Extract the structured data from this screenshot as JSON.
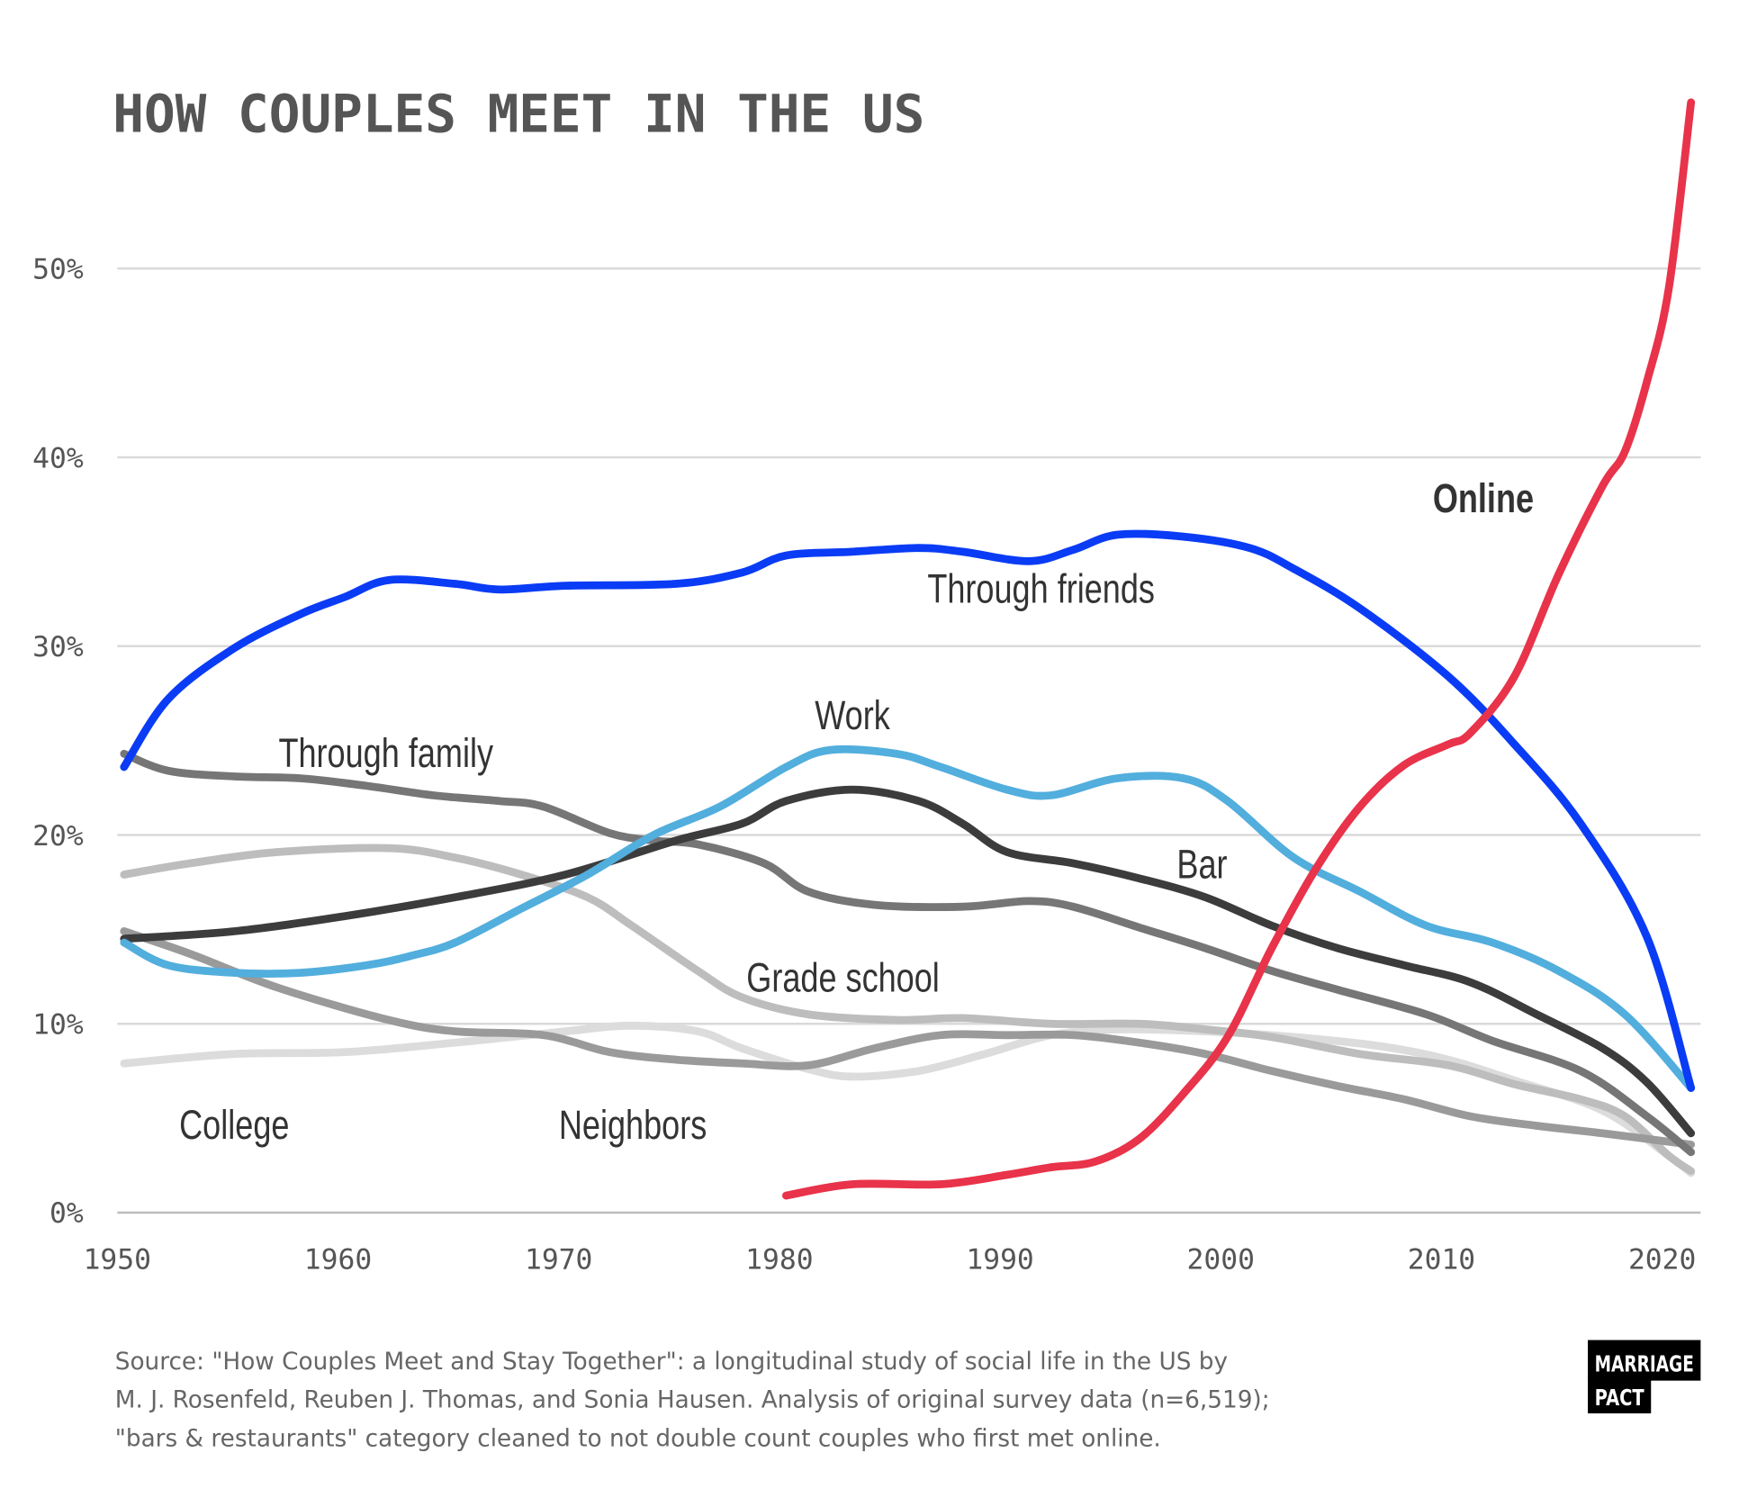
{
  "chart_data": {
    "type": "line",
    "title": "HOW COUPLES MEET IN THE US",
    "xlabel": "",
    "ylabel": "",
    "xlim": [
      1950,
      2021
    ],
    "ylim": [
      0,
      59
    ],
    "grid": true,
    "legend": "inline labels",
    "x_ticks": [
      "1950",
      "1960",
      "1970",
      "1980",
      "1990",
      "2000",
      "2010",
      "2020"
    ],
    "y_ticks": [
      "0%",
      "10%",
      "20%",
      "30%",
      "40%",
      "50%"
    ],
    "series": [
      {
        "name": "College",
        "color": "#dcdcdc",
        "label_pos": [
          1952.5,
          3.9
        ],
        "points": [
          [
            1950,
            7.9
          ],
          [
            1955,
            8.4
          ],
          [
            1960,
            8.5
          ],
          [
            1965,
            9.0
          ],
          [
            1970,
            9.6
          ],
          [
            1973,
            9.9
          ],
          [
            1976,
            9.6
          ],
          [
            1978,
            8.7
          ],
          [
            1981,
            7.6
          ],
          [
            1983,
            7.2
          ],
          [
            1986,
            7.5
          ],
          [
            1989,
            8.4
          ],
          [
            1992,
            9.4
          ],
          [
            1995,
            9.7
          ],
          [
            1999,
            9.6
          ],
          [
            2003,
            9.3
          ],
          [
            2007,
            8.8
          ],
          [
            2010,
            8.1
          ],
          [
            2013,
            7.0
          ],
          [
            2017,
            5.4
          ],
          [
            2020,
            3.0
          ],
          [
            2021,
            2.1
          ]
        ]
      },
      {
        "name": "Grade school",
        "color": "#bdbdbd",
        "label_pos": [
          1978.2,
          11.7
        ],
        "points": [
          [
            1950,
            17.9
          ],
          [
            1953,
            18.5
          ],
          [
            1957,
            19.1
          ],
          [
            1962,
            19.3
          ],
          [
            1965,
            18.8
          ],
          [
            1968,
            17.9
          ],
          [
            1971,
            16.7
          ],
          [
            1973,
            15.2
          ],
          [
            1976,
            12.8
          ],
          [
            1978,
            11.4
          ],
          [
            1981,
            10.5
          ],
          [
            1985,
            10.2
          ],
          [
            1988,
            10.3
          ],
          [
            1992,
            10.0
          ],
          [
            1996,
            10.0
          ],
          [
            1999,
            9.7
          ],
          [
            2002,
            9.3
          ],
          [
            2006,
            8.4
          ],
          [
            2010,
            7.8
          ],
          [
            2013,
            6.8
          ],
          [
            2016,
            6.0
          ],
          [
            2018,
            5.1
          ],
          [
            2020,
            3.0
          ],
          [
            2021,
            2.2
          ]
        ]
      },
      {
        "name": "Neighbors",
        "color": "#9a9a9a",
        "label_pos": [
          1969.7,
          3.9
        ],
        "points": [
          [
            1950,
            14.9
          ],
          [
            1953,
            13.7
          ],
          [
            1957,
            11.9
          ],
          [
            1962,
            10.2
          ],
          [
            1965,
            9.6
          ],
          [
            1969,
            9.4
          ],
          [
            1972,
            8.5
          ],
          [
            1975,
            8.1
          ],
          [
            1978,
            7.9
          ],
          [
            1981,
            7.8
          ],
          [
            1984,
            8.7
          ],
          [
            1987,
            9.4
          ],
          [
            1990,
            9.4
          ],
          [
            1993,
            9.4
          ],
          [
            1996,
            9.0
          ],
          [
            1999,
            8.4
          ],
          [
            2002,
            7.5
          ],
          [
            2005,
            6.7
          ],
          [
            2008,
            6.0
          ],
          [
            2011,
            5.1
          ],
          [
            2014,
            4.6
          ],
          [
            2017,
            4.2
          ],
          [
            2021,
            3.6
          ]
        ]
      },
      {
        "name": "Through family",
        "color": "#767676",
        "label_pos": [
          1957,
          23.6
        ],
        "points": [
          [
            1950,
            24.3
          ],
          [
            1952,
            23.4
          ],
          [
            1955,
            23.1
          ],
          [
            1958,
            23.0
          ],
          [
            1961,
            22.6
          ],
          [
            1964,
            22.1
          ],
          [
            1967,
            21.8
          ],
          [
            1969,
            21.5
          ],
          [
            1972,
            20.1
          ],
          [
            1974,
            19.7
          ],
          [
            1976,
            19.5
          ],
          [
            1979,
            18.5
          ],
          [
            1981,
            17.0
          ],
          [
            1984,
            16.3
          ],
          [
            1988,
            16.2
          ],
          [
            1991,
            16.5
          ],
          [
            1993,
            16.2
          ],
          [
            1996,
            15.1
          ],
          [
            1999,
            14.0
          ],
          [
            2002,
            12.8
          ],
          [
            2005,
            11.8
          ],
          [
            2009,
            10.5
          ],
          [
            2012,
            9.1
          ],
          [
            2016,
            7.5
          ],
          [
            2019,
            5.1
          ],
          [
            2021,
            3.2
          ]
        ]
      },
      {
        "name": "Bar",
        "color": "#3c3c3c",
        "label_pos": [
          1997.7,
          17.7
        ],
        "points": [
          [
            1950,
            14.5
          ],
          [
            1955,
            14.9
          ],
          [
            1960,
            15.7
          ],
          [
            1965,
            16.7
          ],
          [
            1970,
            17.9
          ],
          [
            1975,
            19.7
          ],
          [
            1978,
            20.6
          ],
          [
            1980,
            21.8
          ],
          [
            1983,
            22.4
          ],
          [
            1986,
            21.8
          ],
          [
            1988,
            20.6
          ],
          [
            1990,
            19.1
          ],
          [
            1993,
            18.5
          ],
          [
            1996,
            17.7
          ],
          [
            1999,
            16.7
          ],
          [
            2002,
            15.2
          ],
          [
            2005,
            14.0
          ],
          [
            2008,
            13.1
          ],
          [
            2011,
            12.2
          ],
          [
            2014,
            10.5
          ],
          [
            2017,
            8.7
          ],
          [
            2019,
            6.9
          ],
          [
            2021,
            4.2
          ]
        ]
      },
      {
        "name": "Work",
        "color": "#52aedd",
        "label_pos": [
          1981.3,
          25.6
        ],
        "points": [
          [
            1950,
            14.3
          ],
          [
            1952,
            13.1
          ],
          [
            1955,
            12.7
          ],
          [
            1958,
            12.7
          ],
          [
            1961,
            13.1
          ],
          [
            1963,
            13.6
          ],
          [
            1965,
            14.3
          ],
          [
            1968,
            16.1
          ],
          [
            1971,
            17.9
          ],
          [
            1974,
            20.0
          ],
          [
            1977,
            21.5
          ],
          [
            1980,
            23.6
          ],
          [
            1982,
            24.5
          ],
          [
            1985,
            24.3
          ],
          [
            1987,
            23.6
          ],
          [
            1990,
            22.4
          ],
          [
            1992,
            22.1
          ],
          [
            1995,
            23.0
          ],
          [
            1998,
            23.0
          ],
          [
            2000,
            21.8
          ],
          [
            2003,
            18.8
          ],
          [
            2006,
            17.0
          ],
          [
            2009,
            15.2
          ],
          [
            2012,
            14.3
          ],
          [
            2015,
            12.8
          ],
          [
            2018,
            10.5
          ],
          [
            2021,
            6.6
          ]
        ]
      },
      {
        "name": "Through friends",
        "color": "#0a3cf5",
        "label_pos": [
          1986.4,
          32.3
        ],
        "points": [
          [
            1950,
            23.6
          ],
          [
            1952,
            27.2
          ],
          [
            1955,
            29.9
          ],
          [
            1958,
            31.7
          ],
          [
            1960,
            32.6
          ],
          [
            1962,
            33.5
          ],
          [
            1965,
            33.3
          ],
          [
            1967,
            33.0
          ],
          [
            1970,
            33.2
          ],
          [
            1975,
            33.3
          ],
          [
            1978,
            33.9
          ],
          [
            1980,
            34.8
          ],
          [
            1983,
            35.0
          ],
          [
            1986,
            35.2
          ],
          [
            1988,
            35.0
          ],
          [
            1991,
            34.5
          ],
          [
            1993,
            35.1
          ],
          [
            1995,
            35.9
          ],
          [
            1998,
            35.8
          ],
          [
            2001,
            35.2
          ],
          [
            2003,
            34.1
          ],
          [
            2006,
            32.0
          ],
          [
            2010,
            28.4
          ],
          [
            2013,
            24.8
          ],
          [
            2016,
            20.6
          ],
          [
            2019,
            14.6
          ],
          [
            2021,
            6.6
          ]
        ]
      },
      {
        "name": "Online",
        "color": "#e8334a",
        "label_pos": [
          2009.3,
          37.1
        ],
        "label_bold": true,
        "points": [
          [
            1980,
            0.9
          ],
          [
            1983,
            1.5
          ],
          [
            1987,
            1.5
          ],
          [
            1990,
            2.0
          ],
          [
            1992,
            2.4
          ],
          [
            1994,
            2.7
          ],
          [
            1996,
            3.9
          ],
          [
            1998,
            6.3
          ],
          [
            2000,
            9.3
          ],
          [
            2002,
            14.0
          ],
          [
            2004,
            18.2
          ],
          [
            2006,
            21.5
          ],
          [
            2008,
            23.7
          ],
          [
            2010,
            24.8
          ],
          [
            2011,
            25.4
          ],
          [
            2013,
            28.4
          ],
          [
            2015,
            33.8
          ],
          [
            2017,
            38.5
          ],
          [
            2018,
            40.3
          ],
          [
            2019,
            44.0
          ],
          [
            2020,
            49.0
          ],
          [
            2021,
            58.8
          ]
        ]
      }
    ]
  },
  "source": {
    "lines": [
      "Source: \"How Couples Meet and Stay Together\": a longitudinal study of social life in the US by",
      "M. J. Rosenfeld, Reuben J. Thomas, and Sonia Hausen. Analysis of original survey data (n=6,519);",
      "\"bars & restaurants\" category cleaned to not double count couples who first met online."
    ]
  },
  "logo": {
    "line1": "MARRIAGE",
    "line2": "PACT"
  }
}
